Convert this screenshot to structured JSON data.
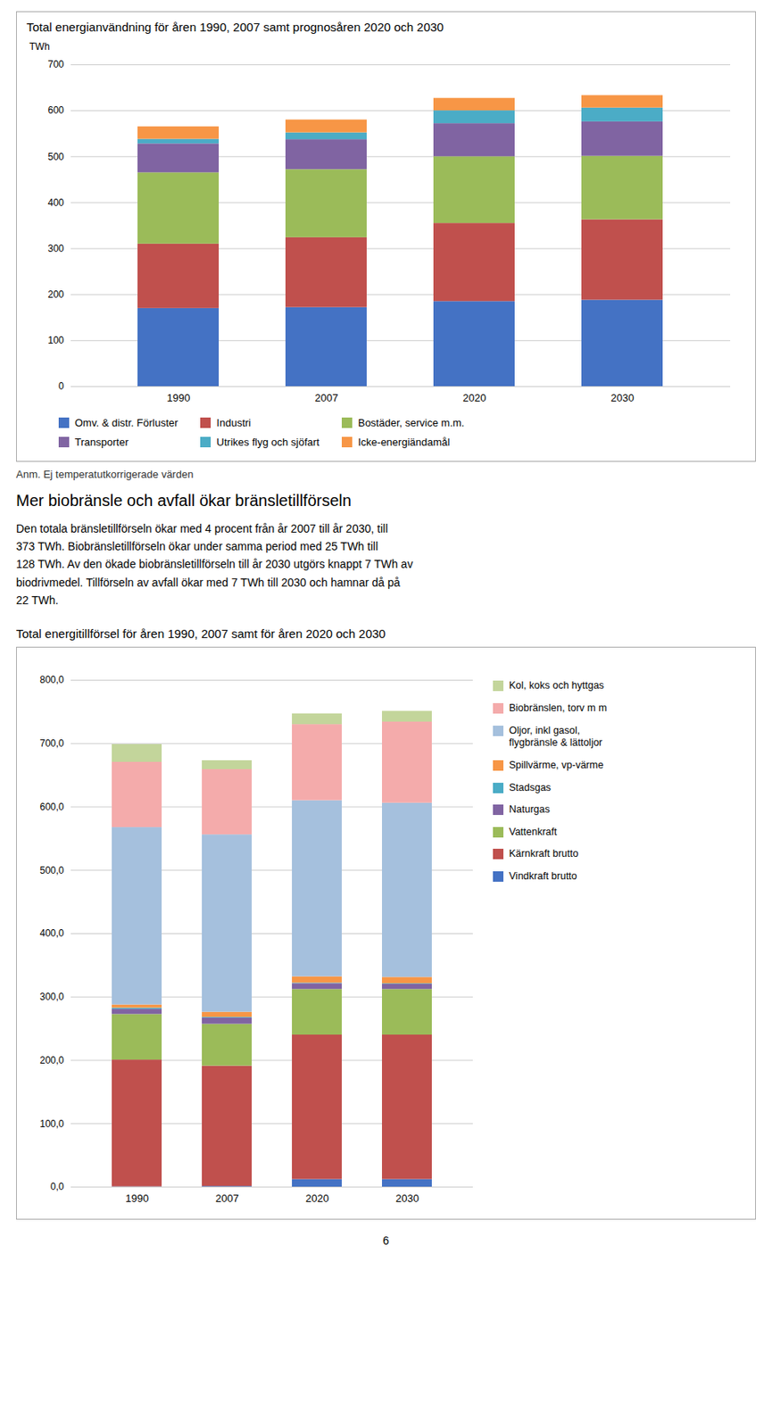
{
  "chart_data": [
    {
      "type": "bar",
      "stacked": true,
      "grid": true,
      "legend": "bottom",
      "title": "Total energianvändning för åren 1990, 2007 samt prognosåren 2020 och 2030",
      "ylabel": "TWh",
      "categories": [
        "1990",
        "2007",
        "2020",
        "2030"
      ],
      "series": [
        {
          "name": "Omv. & distr. Förluster",
          "color": "#4472C4",
          "values": [
            170,
            172,
            185,
            188
          ]
        },
        {
          "name": "Industri",
          "color": "#C0504D",
          "values": [
            140,
            152,
            170,
            175
          ]
        },
        {
          "name": "Bostäder, service m.m.",
          "color": "#9BBB59",
          "values": [
            155,
            148,
            145,
            138
          ]
        },
        {
          "name": "Transporter",
          "color": "#8064A2",
          "values": [
            63,
            65,
            72,
            75
          ]
        },
        {
          "name": "Utrikes flyg och sjöfart",
          "color": "#4BACC6",
          "values": [
            10,
            15,
            28,
            30
          ]
        },
        {
          "name": "Icke-energiändamål",
          "color": "#F79646",
          "values": [
            27,
            28,
            27,
            27
          ]
        }
      ],
      "ylim": [
        0,
        700
      ],
      "yticks": [
        0,
        100,
        200,
        300,
        400,
        500,
        600,
        700
      ],
      "annotations": [
        "Anm. Ej temperatutkorrigerade värden"
      ]
    },
    {
      "type": "bar",
      "stacked": true,
      "grid": true,
      "legend": "right",
      "title": "Total energitillförsel för åren 1990, 2007 samt för åren 2020 och 2030",
      "categories": [
        "1990",
        "2007",
        "2020",
        "2030"
      ],
      "series": [
        {
          "name": "Vindkraft brutto",
          "color": "#4472C4",
          "values": [
            0.5,
            1.0,
            12,
            12
          ]
        },
        {
          "name": "Kärnkraft brutto",
          "color": "#C0504D",
          "values": [
            200,
            190,
            228,
            228
          ]
        },
        {
          "name": "Vattenkraft",
          "color": "#9BBB59",
          "values": [
            72,
            66,
            72,
            72
          ]
        },
        {
          "name": "Naturgas",
          "color": "#8064A2",
          "values": [
            8,
            10,
            9,
            8
          ]
        },
        {
          "name": "Stadsgas",
          "color": "#4BACC6",
          "values": [
            2,
            1,
            1,
            1
          ]
        },
        {
          "name": "Spillvärme, vp-värme",
          "color": "#F79646",
          "values": [
            5,
            8,
            10,
            10
          ]
        },
        {
          "name": "Oljor, inkl gasol,\nflygbränsle & lättoljor",
          "color": "#A5C0DD",
          "values": [
            280,
            280,
            278,
            275
          ]
        },
        {
          "name": "Biobränslen, torv m m",
          "color": "#F4ABAB",
          "values": [
            103,
            103,
            120,
            128
          ]
        },
        {
          "name": "Kol, koks och hyttgas",
          "color": "#C3D59B",
          "values": [
            28,
            14,
            17,
            17
          ]
        }
      ],
      "ylim": [
        0,
        800
      ],
      "yticks": [
        {
          "value": 0,
          "label": "0,0"
        },
        {
          "value": 100,
          "label": "100,0"
        },
        {
          "value": 200,
          "label": "200,0"
        },
        {
          "value": 300,
          "label": "300,0"
        },
        {
          "value": 400,
          "label": "400,0"
        },
        {
          "value": 500,
          "label": "500,0"
        },
        {
          "value": 600,
          "label": "600,0"
        },
        {
          "value": 700,
          "label": "700,0"
        },
        {
          "value": 800,
          "label": "800,0"
        }
      ]
    }
  ],
  "text": {
    "heading": "Mer biobränsle och avfall ökar bränsletillförseln",
    "body": "Den totala bränsletillförseln ökar med 4 procent från år 2007 till år 2030, till\n373 TWh. Biobränsletillförseln ökar under samma period med 25 TWh till\n128 TWh. Av den ökade biobränsletillförseln till år 2030 utgörs knappt 7 TWh av\nbiodrivmedel. Tillförseln av avfall ökar med 7 TWh till 2030 och hamnar då på\n22 TWh.",
    "page_number": "6"
  }
}
